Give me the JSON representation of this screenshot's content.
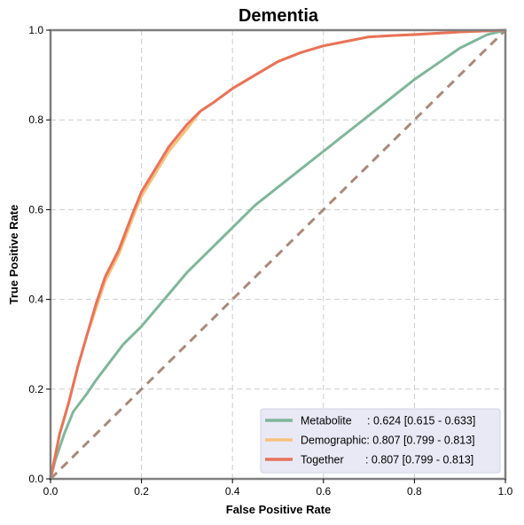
{
  "chart_data": {
    "type": "line",
    "title": "Dementia",
    "xlabel": "False Positive Rate",
    "ylabel": "True Positive Rate",
    "xlim": [
      0,
      1
    ],
    "ylim": [
      0,
      1
    ],
    "xticks": [
      0,
      0.2,
      0.4,
      0.6,
      0.8,
      1.0
    ],
    "yticks": [
      0,
      0.2,
      0.4,
      0.6,
      0.8,
      1.0
    ],
    "xtick_labels": [
      "0.0",
      "0.2",
      "0.4",
      "0.6",
      "0.8",
      "1.0"
    ],
    "ytick_labels": [
      "0.0",
      "0.2",
      "0.4",
      "0.6",
      "0.8",
      "1.0"
    ],
    "grid": true,
    "legend_position": "bottom-right",
    "series": [
      {
        "name": "Metabolite",
        "label": "Metabolite     : 0.624 [0.615 - 0.633]",
        "color": "#7fb69a",
        "x": [
          0,
          0.01,
          0.03,
          0.05,
          0.08,
          0.1,
          0.13,
          0.16,
          0.2,
          0.25,
          0.3,
          0.35,
          0.4,
          0.45,
          0.5,
          0.55,
          0.6,
          0.65,
          0.7,
          0.75,
          0.8,
          0.85,
          0.9,
          0.93,
          0.96,
          1.0
        ],
        "y": [
          0,
          0.04,
          0.1,
          0.15,
          0.19,
          0.22,
          0.26,
          0.3,
          0.34,
          0.4,
          0.46,
          0.51,
          0.56,
          0.61,
          0.65,
          0.69,
          0.73,
          0.77,
          0.81,
          0.85,
          0.89,
          0.925,
          0.96,
          0.975,
          0.99,
          1.0
        ]
      },
      {
        "name": "Demographic",
        "label": "Demographic: 0.807 [0.799 - 0.813]",
        "color": "#f5c27c",
        "x": [
          0,
          0.01,
          0.02,
          0.04,
          0.06,
          0.08,
          0.1,
          0.12,
          0.15,
          0.18,
          0.2,
          0.23,
          0.26,
          0.3,
          0.33,
          0.36,
          0.4,
          0.45,
          0.5,
          0.55,
          0.6,
          0.65,
          0.7,
          0.75,
          0.8,
          0.85,
          0.9,
          0.95,
          1.0
        ],
        "y": [
          0,
          0.05,
          0.1,
          0.17,
          0.25,
          0.32,
          0.38,
          0.44,
          0.5,
          0.58,
          0.63,
          0.68,
          0.73,
          0.78,
          0.82,
          0.84,
          0.87,
          0.9,
          0.93,
          0.95,
          0.965,
          0.975,
          0.985,
          0.988,
          0.99,
          0.993,
          0.996,
          0.998,
          1.0
        ]
      },
      {
        "name": "Together",
        "label": "Together       : 0.807 [0.799 - 0.813]",
        "color": "#e8735a",
        "x": [
          0,
          0.01,
          0.02,
          0.04,
          0.06,
          0.08,
          0.1,
          0.12,
          0.15,
          0.18,
          0.2,
          0.23,
          0.26,
          0.3,
          0.33,
          0.36,
          0.4,
          0.45,
          0.5,
          0.55,
          0.6,
          0.65,
          0.7,
          0.75,
          0.8,
          0.85,
          0.9,
          0.95,
          1.0
        ],
        "y": [
          0,
          0.05,
          0.1,
          0.17,
          0.25,
          0.32,
          0.39,
          0.45,
          0.51,
          0.59,
          0.64,
          0.69,
          0.74,
          0.79,
          0.82,
          0.84,
          0.87,
          0.9,
          0.93,
          0.95,
          0.965,
          0.975,
          0.985,
          0.988,
          0.99,
          0.993,
          0.996,
          0.998,
          1.0
        ]
      }
    ],
    "reference_line": {
      "x": [
        0,
        1
      ],
      "y": [
        0,
        1
      ],
      "color": "#a88a7a",
      "style": "dashed"
    }
  }
}
